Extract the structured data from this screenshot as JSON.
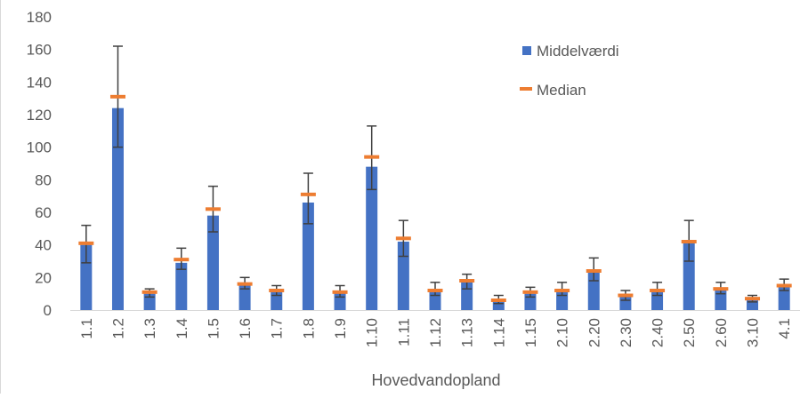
{
  "chart_data": {
    "type": "bar",
    "title": "",
    "xlabel": "Hovedvandopland",
    "ylabel": "",
    "ylim": [
      0,
      180
    ],
    "yticks": [
      0,
      20,
      40,
      60,
      80,
      100,
      120,
      140,
      160,
      180
    ],
    "grid": false,
    "legend_position": "top-right",
    "categories": [
      "1.1",
      "1.2",
      "1.3",
      "1.4",
      "1.5",
      "1.6",
      "1.7",
      "1.8",
      "1.9",
      "1.10",
      "1.11",
      "1.12",
      "1.13",
      "1.14",
      "1.15",
      "2.10",
      "2.20",
      "2.30",
      "2.40",
      "2.50",
      "2.60",
      "3.10",
      "4.1"
    ],
    "series": [
      {
        "name": "Middelværdi",
        "color": "#4472c4",
        "values": [
          40,
          124,
          10,
          29,
          58,
          16,
          12,
          66,
          11,
          88,
          42,
          12,
          17,
          6,
          10,
          12,
          23,
          9,
          12,
          41,
          13,
          7,
          15
        ],
        "error_low": [
          29,
          100,
          8,
          25,
          48,
          13,
          9,
          53,
          8,
          74,
          33,
          9,
          13,
          4,
          8,
          9,
          18,
          6,
          9,
          30,
          10,
          5,
          12
        ],
        "error_high": [
          52,
          162,
          13,
          38,
          76,
          20,
          15,
          84,
          15,
          113,
          55,
          17,
          22,
          9,
          14,
          17,
          32,
          12,
          17,
          55,
          17,
          9,
          19
        ]
      },
      {
        "name": "Median",
        "color": "#ed7d31",
        "values": [
          41,
          131,
          11,
          31,
          62,
          16,
          12,
          71,
          11,
          94,
          44,
          12,
          18,
          6,
          11,
          12,
          24,
          9,
          12,
          42,
          13,
          7,
          15
        ]
      }
    ]
  }
}
